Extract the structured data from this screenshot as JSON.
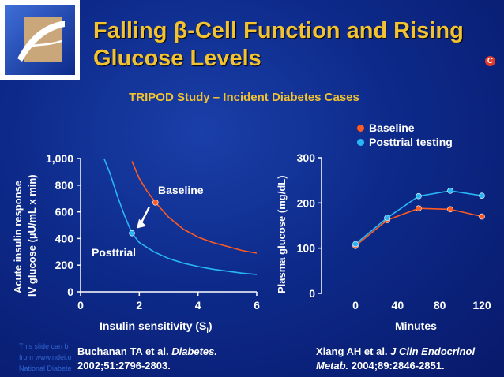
{
  "title_line1": "Falling β-Cell Function and Rising",
  "title_line2": "Glucose Levels",
  "badge": "C",
  "subtitle": "TRIPOD Study – Incident Diabetes Cases",
  "faint_text": [
    "This slide can b",
    "from www.ndei.o",
    "National Diabete"
  ],
  "colors": {
    "baseline": "#ff5a1f",
    "posttrial": "#29b6f6",
    "title": "#f2c230"
  },
  "chart_data": [
    {
      "type": "line",
      "xlabel": "Insulin sensitivity (S",
      "xlabel_sub": "I",
      "xlabel_end": ")",
      "ylabel_line1": "Acute insulin response",
      "ylabel_line2": "IV glucose (µU/mL x min)",
      "xlim": [
        0,
        6
      ],
      "ylim": [
        0,
        1000
      ],
      "x_ticks": [
        "0",
        "2",
        "4",
        "6"
      ],
      "x_tick_values": [
        0,
        2,
        4,
        6
      ],
      "y_ticks": [
        "0",
        "200",
        "400",
        "600",
        "800",
        "1,000"
      ],
      "y_tick_values": [
        0,
        200,
        400,
        600,
        800,
        1000
      ],
      "series": [
        {
          "name": "Baseline",
          "color": "#ff5a1f",
          "x": [
            1.75,
            2.0,
            2.25,
            2.55,
            3.0,
            3.5,
            4.0,
            4.5,
            5.0,
            5.5,
            6.0
          ],
          "y": [
            980,
            850,
            760,
            670,
            560,
            470,
            410,
            370,
            340,
            310,
            290
          ],
          "marker": {
            "x": 2.55,
            "y": 670
          }
        },
        {
          "name": "Posttrial",
          "color": "#29b6f6",
          "x": [
            0.8,
            1.0,
            1.25,
            1.5,
            1.75,
            2.0,
            2.5,
            3.0,
            3.5,
            4.0,
            4.5,
            5.0,
            5.5,
            6.0
          ],
          "y": [
            1000,
            890,
            720,
            570,
            440,
            370,
            300,
            250,
            215,
            190,
            170,
            155,
            140,
            130
          ],
          "marker": {
            "x": 1.75,
            "y": 440
          }
        }
      ],
      "annotations": {
        "baseline_label": "Baseline",
        "posttrial_label": "Posttrial"
      },
      "citation_line1_pre": "Buchanan TA et al. ",
      "citation_line1_journal": "Diabetes.",
      "citation_line2": "2002;51:2796-2803."
    },
    {
      "type": "line",
      "xlabel": "Minutes",
      "ylabel": "Plasma glucose (mg/dL)",
      "ylim": [
        0,
        300
      ],
      "categories": [
        "0",
        "40",
        "80",
        "120"
      ],
      "x": [
        0,
        30,
        60,
        90,
        120
      ],
      "x_ticks": [
        "0",
        "40",
        "80",
        "120"
      ],
      "x_tick_values": [
        0,
        40,
        80,
        120
      ],
      "y_ticks": [
        "0",
        "100",
        "200",
        "300"
      ],
      "y_tick_values": [
        0,
        100,
        200,
        300
      ],
      "legend": [
        "Baseline",
        "Posttrial testing"
      ],
      "series": [
        {
          "name": "Baseline",
          "color": "#ff5a1f",
          "values": [
            105,
            162,
            188,
            186,
            170
          ]
        },
        {
          "name": "Posttrial testing",
          "color": "#29b6f6",
          "values": [
            109,
            167,
            215,
            227,
            216
          ]
        }
      ],
      "citation_line1_pre": "Xiang AH et al. ",
      "citation_line1_journal": "J Clin Endocrinol",
      "citation_line2_journal": "Metab.",
      "citation_line2_rest": " 2004;89:2846-2851."
    }
  ]
}
